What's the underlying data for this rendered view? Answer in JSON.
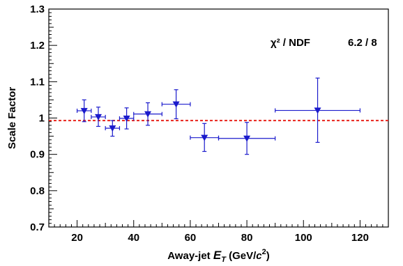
{
  "chart_data": {
    "type": "scatter",
    "xlabel_prefix": "Away-jet ",
    "xlabel_var": "E",
    "xlabel_sub": "T",
    "xlabel_unit_open": " (GeV/",
    "xlabel_unit_var": "c",
    "xlabel_unit_sup": "2",
    "xlabel_unit_close": ")",
    "ylabel": "Scale Factor",
    "xlim": [
      10,
      130
    ],
    "ylim": [
      0.7,
      1.3
    ],
    "x_ticks": [
      20,
      40,
      60,
      80,
      100,
      120
    ],
    "x_tick_labels": [
      "20",
      "40",
      "60",
      "80",
      "100",
      "120"
    ],
    "y_ticks": [
      0.7,
      0.8,
      0.9,
      1.0,
      1.1,
      1.2,
      1.3
    ],
    "y_tick_labels": [
      "0.7",
      "0.8",
      "0.9",
      "1",
      "1.1",
      "1.2",
      "1.3"
    ],
    "grid": false,
    "reference_line": {
      "y": 0.993,
      "color": "#e8241c",
      "style": "dashed"
    },
    "marker": "triangle-down",
    "series_color": "#1a1acc",
    "points": [
      {
        "x": 22.5,
        "y": 1.02,
        "xlo": 20,
        "xhi": 25,
        "ylo": 0.99,
        "yhi": 1.05
      },
      {
        "x": 27.5,
        "y": 1.003,
        "xlo": 25,
        "xhi": 30,
        "ylo": 0.977,
        "yhi": 1.03
      },
      {
        "x": 32.5,
        "y": 0.972,
        "xlo": 30,
        "xhi": 35,
        "ylo": 0.95,
        "yhi": 0.993
      },
      {
        "x": 37.5,
        "y": 0.999,
        "xlo": 35,
        "xhi": 40,
        "ylo": 0.97,
        "yhi": 1.028
      },
      {
        "x": 45.0,
        "y": 1.011,
        "xlo": 40,
        "xhi": 50,
        "ylo": 0.98,
        "yhi": 1.042
      },
      {
        "x": 55.0,
        "y": 1.038,
        "xlo": 50,
        "xhi": 60,
        "ylo": 0.998,
        "yhi": 1.078
      },
      {
        "x": 65.0,
        "y": 0.946,
        "xlo": 60,
        "xhi": 70,
        "ylo": 0.908,
        "yhi": 0.985
      },
      {
        "x": 80.0,
        "y": 0.944,
        "xlo": 70,
        "xhi": 90,
        "ylo": 0.9,
        "yhi": 0.988
      },
      {
        "x": 105.0,
        "y": 1.021,
        "xlo": 90,
        "xhi": 120,
        "ylo": 0.933,
        "yhi": 1.11
      }
    ],
    "stat_label": "χ² / NDF",
    "stat_value": "6.2 / 8"
  }
}
